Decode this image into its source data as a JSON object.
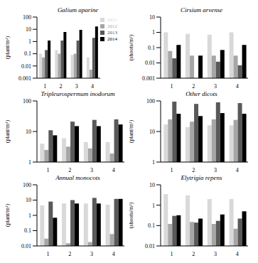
{
  "chart_data": [
    {
      "type": "bar",
      "title": "Galium aparine",
      "y_label": "(plant/m²)",
      "categories": [
        "1",
        "2",
        "3",
        "4"
      ],
      "log": "y",
      "ylim": [
        0.001,
        100
      ],
      "yticks": [
        0.001,
        0.01,
        0.1,
        1,
        10,
        100
      ],
      "legend": "top right",
      "series": [
        {
          "name": "2011",
          "color": "#d9d9d9",
          "values": [
            0.1,
            0.2,
            0.08,
            0.05
          ]
        },
        {
          "name": "2012",
          "color": "#a6a6a6",
          "values": [
            0.05,
            0.1,
            0.1,
            0.005
          ]
        },
        {
          "name": "2013",
          "color": "#595959",
          "values": [
            0.2,
            1.2,
            1.2,
            2
          ]
        },
        {
          "name": "2014",
          "color": "#000000",
          "values": [
            1.2,
            6,
            9,
            17
          ]
        }
      ]
    },
    {
      "type": "bar",
      "title": "Cirsium arvense",
      "y_label": "(shoots/m²)",
      "categories": [
        "1",
        "2",
        "3",
        "4"
      ],
      "log": "y",
      "ylim": [
        0.001,
        10
      ],
      "yticks": [
        0.001,
        0.01,
        0.1,
        1,
        10
      ],
      "series": [
        {
          "name": "2011",
          "color": "#d9d9d9",
          "values": [
            1,
            0.8,
            0.7,
            1
          ]
        },
        {
          "name": "2012",
          "color": "#a6a6a6",
          "values": [
            0.06,
            0.03,
            0.03,
            0.03
          ]
        },
        {
          "name": "2013",
          "color": "#595959",
          "values": [
            0.02,
            null,
            0.012,
            0.007
          ]
        },
        {
          "name": "2014",
          "color": "#000000",
          "values": [
            0.15,
            0.03,
            0.07,
            0.15
          ]
        }
      ]
    },
    {
      "type": "bar",
      "title": "Tripleurospermum inodorum",
      "y_label": "(plant/m²)",
      "categories": [
        "1",
        "2",
        "3",
        "4"
      ],
      "log": "y",
      "ylim": [
        1,
        100
      ],
      "yticks": [
        1,
        10,
        100
      ],
      "series": [
        {
          "name": "2011",
          "color": "#d9d9d9",
          "values": [
            4,
            6,
            4.5,
            4.5
          ]
        },
        {
          "name": "2012",
          "color": "#a6a6a6",
          "values": [
            2.5,
            3.2,
            2.8,
            1.9
          ]
        },
        {
          "name": "2013",
          "color": "#595959",
          "values": [
            11,
            21,
            24,
            25
          ]
        },
        {
          "name": "2014",
          "color": "#000000",
          "values": [
            7.5,
            15,
            15,
            17
          ]
        }
      ]
    },
    {
      "type": "bar",
      "title": "Other dicots",
      "y_label": "(plant/m²)",
      "categories": [
        "1",
        "2",
        "3",
        "4"
      ],
      "log": "y",
      "ylim": [
        1,
        100
      ],
      "yticks": [
        1,
        10,
        100
      ],
      "series": [
        {
          "name": "2011",
          "color": "#d9d9d9",
          "values": [
            17,
            14,
            16,
            16
          ]
        },
        {
          "name": "2012",
          "color": "#a6a6a6",
          "values": [
            25,
            21,
            25,
            24
          ]
        },
        {
          "name": "2013",
          "color": "#595959",
          "values": [
            95,
            80,
            90,
            85
          ]
        },
        {
          "name": "2014",
          "color": "#000000",
          "values": [
            38,
            32,
            40,
            38
          ]
        }
      ]
    },
    {
      "type": "bar",
      "title": "Annual monocots",
      "y_label": "(plant/m²)",
      "categories": [
        "1",
        "2",
        "3",
        "4"
      ],
      "log": "y",
      "ylim": [
        0.01,
        100
      ],
      "yticks": [
        0.01,
        0.1,
        1,
        10,
        100
      ],
      "series": [
        {
          "name": "2011",
          "color": "#d9d9d9",
          "values": [
            4.5,
            6,
            6,
            5
          ]
        },
        {
          "name": "2012",
          "color": "#a6a6a6",
          "values": [
            0.03,
            0.015,
            0.018,
            0.06
          ]
        },
        {
          "name": "2013",
          "color": "#595959",
          "values": [
            8,
            10,
            14,
            12
          ]
        },
        {
          "name": "2014",
          "color": "#000000",
          "values": [
            0.7,
            6,
            6,
            12
          ]
        }
      ]
    },
    {
      "type": "bar",
      "title": "Elytrigia repens",
      "y_label": "(shoots/m²)",
      "categories": [
        "1",
        "2",
        "3",
        "4"
      ],
      "log": "y",
      "ylim": [
        0.01,
        10
      ],
      "yticks": [
        0.01,
        0.1,
        1,
        10
      ],
      "series": [
        {
          "name": "2011",
          "color": "#d9d9d9",
          "values": [
            3.5,
            3,
            2,
            2
          ]
        },
        {
          "name": "2012",
          "color": "#a6a6a6",
          "values": [
            0.12,
            0.15,
            0.12,
            0.07
          ]
        },
        {
          "name": "2013",
          "color": "#595959",
          "values": [
            0.3,
            0.14,
            0.17,
            0.22
          ]
        },
        {
          "name": "2014",
          "color": "#000000",
          "values": [
            0.32,
            0.22,
            0.35,
            0.5
          ]
        }
      ]
    }
  ]
}
